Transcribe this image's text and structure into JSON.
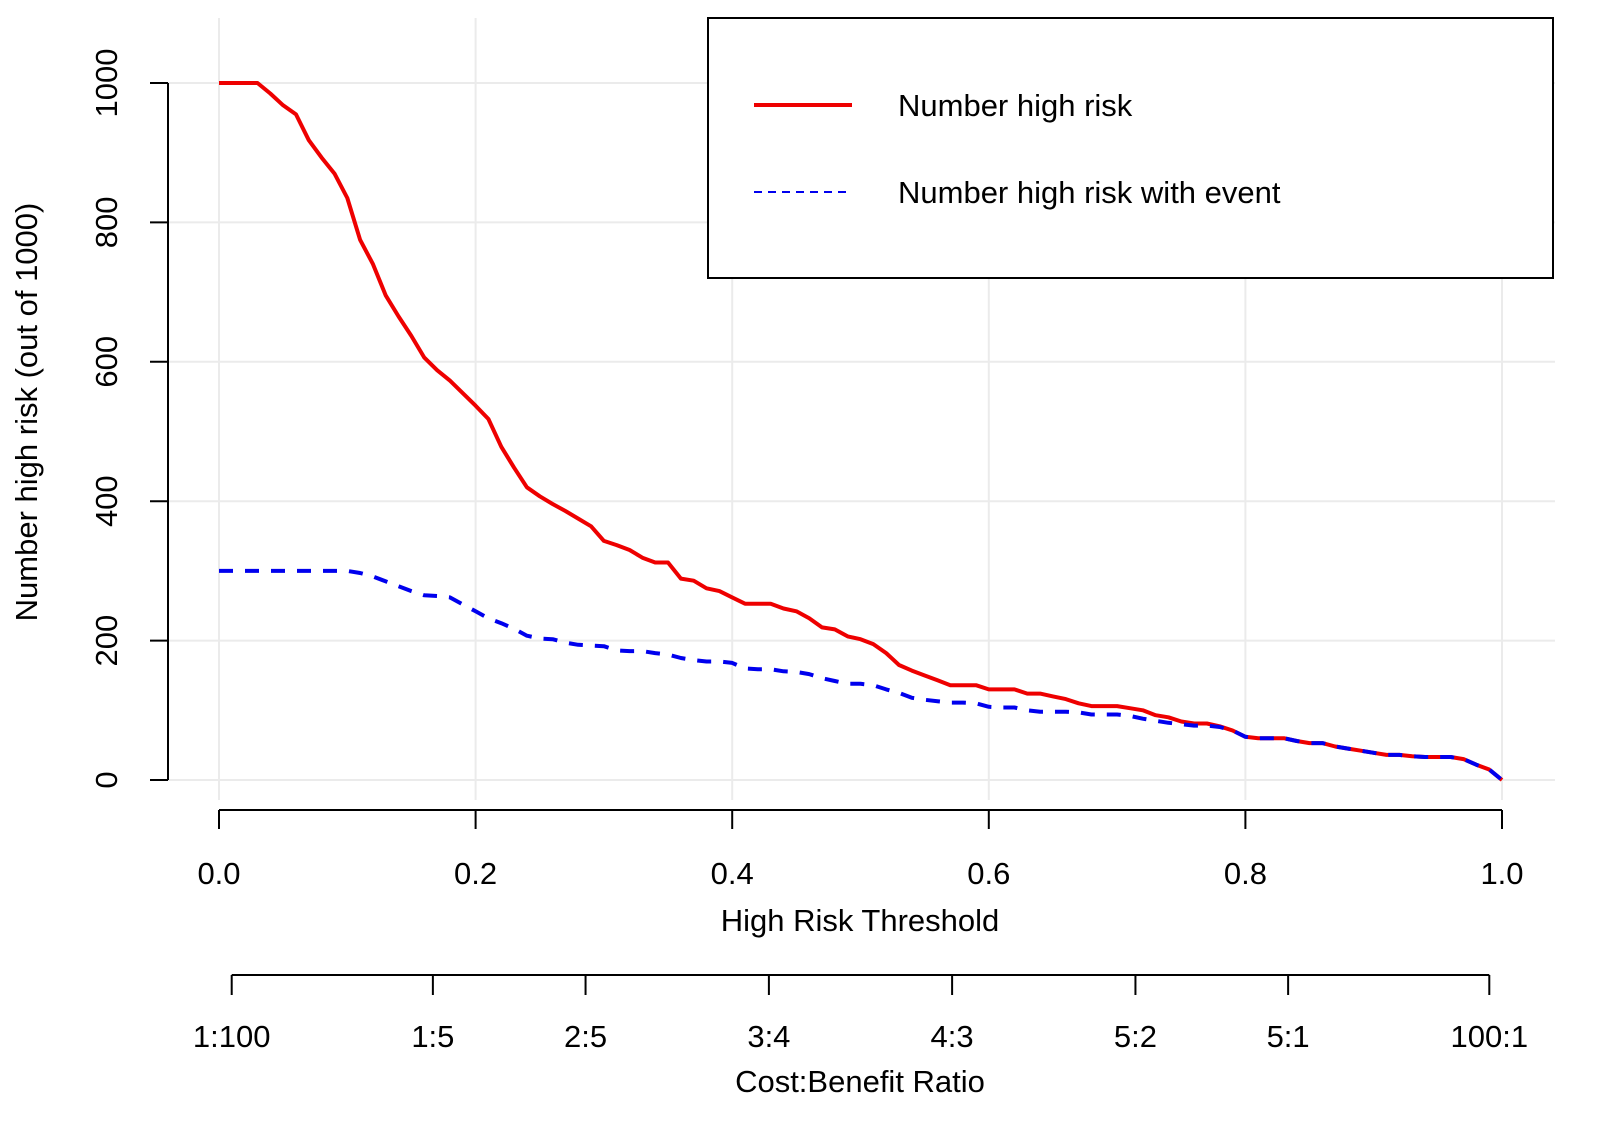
{
  "chart_data": {
    "type": "line",
    "title": "",
    "xlabel": "High Risk Threshold",
    "ylabel": "Number high risk (out of 1000)",
    "xlim": [
      0,
      1
    ],
    "ylim": [
      0,
      1000
    ],
    "grid": true,
    "x_ticks": [
      "0.0",
      "0.2",
      "0.4",
      "0.6",
      "0.8",
      "1.0"
    ],
    "x_tick_values": [
      0,
      0.2,
      0.4,
      0.6,
      0.8,
      1.0
    ],
    "y_ticks": [
      "0",
      "200",
      "400",
      "600",
      "800",
      "1000"
    ],
    "y_tick_values": [
      0,
      200,
      400,
      600,
      800,
      1000
    ],
    "secondary_x_axis": {
      "label": "Cost:Benefit Ratio",
      "ticks": [
        "1:100",
        "1:5",
        "2:5",
        "3:4",
        "4:3",
        "5:2",
        "5:1",
        "100:1"
      ],
      "tick_values": [
        0.0099,
        0.1667,
        0.2857,
        0.4286,
        0.5714,
        0.7143,
        0.8333,
        0.9901
      ]
    },
    "legend": {
      "placement": "top-right",
      "entries": [
        "Number high risk",
        "Number high risk with event"
      ]
    },
    "x": [
      0,
      0.01,
      0.02,
      0.03,
      0.04,
      0.05,
      0.06,
      0.07,
      0.08,
      0.09,
      0.1,
      0.11,
      0.12,
      0.13,
      0.14,
      0.15,
      0.16,
      0.17,
      0.18,
      0.19,
      0.2,
      0.21,
      0.22,
      0.23,
      0.24,
      0.25,
      0.26,
      0.27,
      0.28,
      0.29,
      0.3,
      0.31,
      0.32,
      0.33,
      0.34,
      0.35,
      0.36,
      0.37,
      0.38,
      0.39,
      0.4,
      0.41,
      0.42,
      0.43,
      0.44,
      0.45,
      0.46,
      0.47,
      0.48,
      0.49,
      0.5,
      0.51,
      0.52,
      0.53,
      0.54,
      0.55,
      0.56,
      0.57,
      0.58,
      0.59,
      0.6,
      0.61,
      0.62,
      0.63,
      0.64,
      0.65,
      0.66,
      0.67,
      0.68,
      0.69,
      0.7,
      0.71,
      0.72,
      0.73,
      0.74,
      0.75,
      0.76,
      0.77,
      0.78,
      0.79,
      0.8,
      0.81,
      0.82,
      0.83,
      0.84,
      0.85,
      0.86,
      0.87,
      0.88,
      0.89,
      0.9,
      0.91,
      0.92,
      0.93,
      0.94,
      0.95,
      0.96,
      0.97,
      0.98,
      0.99,
      1.0
    ],
    "series": [
      {
        "name": "Number high risk",
        "color": "#ee0000",
        "style": "solid",
        "values": [
          1000,
          1000,
          1000,
          1000,
          985,
          968,
          955,
          918,
          893,
          870,
          835,
          775,
          740,
          695,
          665,
          637,
          606,
          588,
          573,
          555,
          537,
          518,
          478,
          448,
          420,
          407,
          396,
          386,
          375,
          364,
          343,
          337,
          330,
          319,
          312,
          312,
          289,
          286,
          275,
          271,
          262,
          253,
          253,
          253,
          246,
          242,
          232,
          219,
          216,
          206,
          202,
          195,
          182,
          165,
          157,
          150,
          143,
          136,
          136,
          136,
          130,
          130,
          130,
          124,
          124,
          120,
          116,
          110,
          106,
          106,
          106,
          103,
          100,
          93,
          90,
          84,
          81,
          81,
          77,
          71,
          62,
          60,
          60,
          60,
          56,
          53,
          53,
          48,
          45,
          42,
          39,
          36,
          36,
          34,
          33,
          33,
          33,
          30,
          22,
          15,
          0
        ]
      },
      {
        "name": "Number high risk with event",
        "color": "#0000ee",
        "style": "dashed",
        "values": [
          300,
          300,
          300,
          300,
          300,
          300,
          300,
          300,
          300,
          300,
          300,
          297,
          292,
          285,
          278,
          271,
          265,
          264,
          262,
          252,
          242,
          232,
          225,
          217,
          207,
          203,
          202,
          197,
          194,
          193,
          192,
          186,
          185,
          185,
          182,
          180,
          175,
          172,
          170,
          170,
          168,
          160,
          159,
          159,
          156,
          155,
          152,
          146,
          142,
          138,
          138,
          136,
          130,
          125,
          118,
          115,
          113,
          111,
          111,
          110,
          105,
          104,
          104,
          100,
          98,
          98,
          98,
          97,
          94,
          94,
          94,
          92,
          88,
          85,
          82,
          80,
          78,
          78,
          76,
          71,
          62,
          60,
          60,
          60,
          56,
          53,
          53,
          48,
          45,
          42,
          39,
          36,
          36,
          34,
          33,
          33,
          33,
          30,
          22,
          15,
          0
        ]
      }
    ]
  }
}
